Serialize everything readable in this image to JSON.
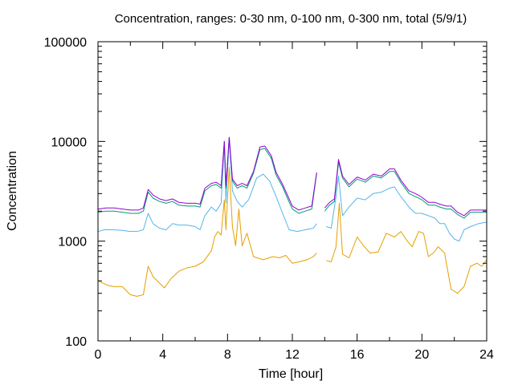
{
  "chart_data": {
    "type": "line",
    "title": "Concentration, ranges: 0-30 nm, 0-100 nm, 0-300 nm, total (5/9/1)",
    "xlabel": "Time [hour]",
    "ylabel": "Concentration",
    "xlim": [
      0,
      24
    ],
    "ylim": [
      100,
      100000
    ],
    "yscale": "log",
    "grid": false,
    "x_ticks": [
      {
        "value": 0,
        "label": "0"
      },
      {
        "value": 4,
        "label": "4"
      },
      {
        "value": 8,
        "label": "8"
      },
      {
        "value": 12,
        "label": "12"
      },
      {
        "value": 16,
        "label": "16"
      },
      {
        "value": 20,
        "label": "20"
      },
      {
        "value": 24,
        "label": "24"
      }
    ],
    "y_ticks": [
      {
        "value": 100,
        "label": "100"
      },
      {
        "value": 1000,
        "label": "1000"
      },
      {
        "value": 10000,
        "label": "10000"
      },
      {
        "value": 100000,
        "label": "100000"
      }
    ],
    "series": [
      {
        "color": "#e69f00",
        "points": [
          [
            0,
            400
          ],
          [
            0.3,
            380
          ],
          [
            0.6,
            360
          ],
          [
            1,
            350
          ],
          [
            1.5,
            350
          ],
          [
            2,
            290
          ],
          [
            2.4,
            280
          ],
          [
            2.8,
            290
          ],
          [
            3.1,
            560
          ],
          [
            3.4,
            440
          ],
          [
            3.8,
            380
          ],
          [
            4.1,
            340
          ],
          [
            4.5,
            420
          ],
          [
            5,
            500
          ],
          [
            5.5,
            540
          ],
          [
            6,
            560
          ],
          [
            6.5,
            620
          ],
          [
            7,
            800
          ],
          [
            7.2,
            1100
          ],
          [
            7.4,
            1250
          ],
          [
            7.6,
            1150
          ],
          [
            7.8,
            2600
          ],
          [
            7.9,
            1300
          ],
          [
            8.1,
            5500
          ],
          [
            8.3,
            1400
          ],
          [
            8.5,
            900
          ],
          [
            8.7,
            2100
          ],
          [
            8.9,
            900
          ],
          [
            9.2,
            1200
          ],
          [
            9.6,
            700
          ],
          [
            10.2,
            650
          ],
          [
            10.8,
            700
          ],
          [
            11.2,
            680
          ],
          [
            11.6,
            720
          ],
          [
            12,
            600
          ],
          [
            12.4,
            620
          ],
          [
            12.9,
            650
          ],
          [
            13.3,
            700
          ],
          [
            13.5,
            760
          ],
          null,
          [
            14.1,
            640
          ],
          [
            14.4,
            620
          ],
          [
            14.7,
            880
          ],
          [
            14.9,
            2400
          ],
          [
            15.1,
            740
          ],
          [
            15.5,
            680
          ],
          [
            16,
            1100
          ],
          [
            16.4,
            900
          ],
          [
            16.8,
            760
          ],
          [
            17.3,
            780
          ],
          [
            17.8,
            1200
          ],
          [
            18.3,
            1100
          ],
          [
            18.7,
            1250
          ],
          [
            19.1,
            1000
          ],
          [
            19.4,
            880
          ],
          [
            19.6,
            1050
          ],
          [
            19.8,
            1250
          ],
          [
            20.1,
            1200
          ],
          [
            20.4,
            700
          ],
          [
            20.7,
            760
          ],
          [
            21,
            880
          ],
          [
            21.4,
            760
          ],
          [
            21.8,
            330
          ],
          [
            22.2,
            300
          ],
          [
            22.6,
            350
          ],
          [
            23,
            560
          ],
          [
            23.4,
            600
          ],
          [
            23.7,
            560
          ],
          [
            24,
            650
          ]
        ]
      },
      {
        "color": "#56b4e9",
        "points": [
          [
            0,
            1250
          ],
          [
            0.4,
            1300
          ],
          [
            1,
            1300
          ],
          [
            1.5,
            1280
          ],
          [
            2,
            1250
          ],
          [
            2.5,
            1260
          ],
          [
            2.8,
            1300
          ],
          [
            3.1,
            1900
          ],
          [
            3.4,
            1500
          ],
          [
            3.8,
            1350
          ],
          [
            4.2,
            1300
          ],
          [
            4.6,
            1500
          ],
          [
            5,
            1450
          ],
          [
            5.5,
            1450
          ],
          [
            6,
            1400
          ],
          [
            6.3,
            1300
          ],
          [
            6.6,
            1800
          ],
          [
            7,
            2200
          ],
          [
            7.3,
            2000
          ],
          [
            7.6,
            2400
          ],
          [
            7.8,
            9500
          ],
          [
            7.9,
            2400
          ],
          [
            8.1,
            10500
          ],
          [
            8.3,
            3200
          ],
          [
            8.6,
            2500
          ],
          [
            8.9,
            2200
          ],
          [
            9.3,
            2600
          ],
          [
            9.8,
            4300
          ],
          [
            10.2,
            4700
          ],
          [
            10.6,
            4000
          ],
          [
            11,
            2800
          ],
          [
            11.4,
            1900
          ],
          [
            11.8,
            1300
          ],
          [
            12.3,
            1250
          ],
          [
            12.8,
            1300
          ],
          [
            13.3,
            1350
          ],
          [
            13.5,
            1500
          ],
          null,
          [
            14.1,
            1400
          ],
          [
            14.4,
            1350
          ],
          [
            14.7,
            2800
          ],
          [
            14.85,
            4500
          ],
          [
            15.1,
            1800
          ],
          [
            15.5,
            2200
          ],
          [
            16,
            2700
          ],
          [
            16.5,
            2600
          ],
          [
            17,
            3000
          ],
          [
            17.5,
            3100
          ],
          [
            18,
            3400
          ],
          [
            18.3,
            3500
          ],
          [
            18.7,
            2800
          ],
          [
            19.2,
            2200
          ],
          [
            19.6,
            1900
          ],
          [
            20,
            1900
          ],
          [
            20.4,
            1800
          ],
          [
            20.8,
            1700
          ],
          [
            21.1,
            1500
          ],
          [
            21.4,
            1500
          ],
          [
            21.7,
            1200
          ],
          [
            22,
            1050
          ],
          [
            22.3,
            1000
          ],
          [
            22.6,
            1300
          ],
          [
            23,
            1400
          ],
          [
            23.5,
            1500
          ],
          [
            24,
            1550
          ]
        ]
      },
      {
        "color": "#009e73",
        "points": [
          [
            0,
            1950
          ],
          [
            0.5,
            2000
          ],
          [
            1,
            2000
          ],
          [
            1.5,
            1950
          ],
          [
            2,
            1900
          ],
          [
            2.5,
            1900
          ],
          [
            2.8,
            2000
          ],
          [
            3.1,
            3100
          ],
          [
            3.4,
            2700
          ],
          [
            3.8,
            2500
          ],
          [
            4.2,
            2400
          ],
          [
            4.6,
            2500
          ],
          [
            5,
            2300
          ],
          [
            5.5,
            2250
          ],
          [
            6,
            2250
          ],
          [
            6.3,
            2200
          ],
          [
            6.6,
            3200
          ],
          [
            7,
            3600
          ],
          [
            7.3,
            3700
          ],
          [
            7.6,
            3400
          ],
          [
            7.8,
            10000
          ],
          [
            7.9,
            3400
          ],
          [
            8.1,
            11000
          ],
          [
            8.3,
            4000
          ],
          [
            8.6,
            3400
          ],
          [
            8.9,
            3600
          ],
          [
            9.2,
            3400
          ],
          [
            9.6,
            4800
          ],
          [
            10,
            8300
          ],
          [
            10.3,
            8500
          ],
          [
            10.7,
            6800
          ],
          [
            11,
            4600
          ],
          [
            11.4,
            3500
          ],
          [
            11.7,
            2700
          ],
          [
            12,
            2100
          ],
          [
            12.4,
            1900
          ],
          [
            12.8,
            2000
          ],
          [
            13.2,
            2100
          ],
          [
            13.5,
            4800
          ],
          null,
          [
            14,
            2000
          ],
          [
            14.3,
            2300
          ],
          [
            14.6,
            2500
          ],
          [
            14.85,
            6200
          ],
          [
            15.1,
            4300
          ],
          [
            15.5,
            3500
          ],
          [
            16,
            4200
          ],
          [
            16.5,
            3900
          ],
          [
            17,
            4500
          ],
          [
            17.5,
            4300
          ],
          [
            18,
            5000
          ],
          [
            18.3,
            5000
          ],
          [
            18.7,
            3900
          ],
          [
            19.2,
            3000
          ],
          [
            19.6,
            2800
          ],
          [
            20,
            2600
          ],
          [
            20.4,
            2300
          ],
          [
            20.8,
            2300
          ],
          [
            21.1,
            2200
          ],
          [
            21.5,
            2100
          ],
          [
            21.8,
            2100
          ],
          [
            22.2,
            1850
          ],
          [
            22.6,
            1700
          ],
          [
            23,
            1950
          ],
          [
            23.5,
            1950
          ],
          [
            24,
            1950
          ]
        ]
      },
      {
        "color": "#9400d3",
        "points": [
          [
            0,
            2100
          ],
          [
            0.5,
            2150
          ],
          [
            1,
            2150
          ],
          [
            1.5,
            2100
          ],
          [
            2,
            2050
          ],
          [
            2.5,
            2050
          ],
          [
            2.8,
            2150
          ],
          [
            3.1,
            3300
          ],
          [
            3.4,
            2900
          ],
          [
            3.8,
            2650
          ],
          [
            4.2,
            2550
          ],
          [
            4.6,
            2650
          ],
          [
            5,
            2450
          ],
          [
            5.5,
            2400
          ],
          [
            6,
            2400
          ],
          [
            6.3,
            2350
          ],
          [
            6.6,
            3400
          ],
          [
            7,
            3800
          ],
          [
            7.3,
            3900
          ],
          [
            7.6,
            3600
          ],
          [
            7.8,
            10000
          ],
          [
            7.9,
            3600
          ],
          [
            8.1,
            11000
          ],
          [
            8.3,
            4200
          ],
          [
            8.6,
            3600
          ],
          [
            8.9,
            3800
          ],
          [
            9.2,
            3600
          ],
          [
            9.6,
            5000
          ],
          [
            10,
            8800
          ],
          [
            10.3,
            9000
          ],
          [
            10.7,
            7200
          ],
          [
            11,
            4900
          ],
          [
            11.4,
            3700
          ],
          [
            11.7,
            2900
          ],
          [
            12,
            2250
          ],
          [
            12.4,
            2050
          ],
          [
            12.8,
            2150
          ],
          [
            13.2,
            2250
          ],
          [
            13.5,
            4900
          ],
          null,
          [
            14,
            2150
          ],
          [
            14.3,
            2450
          ],
          [
            14.6,
            2650
          ],
          [
            14.85,
            6600
          ],
          [
            15.1,
            4500
          ],
          [
            15.5,
            3700
          ],
          [
            16,
            4400
          ],
          [
            16.5,
            4100
          ],
          [
            17,
            4700
          ],
          [
            17.5,
            4500
          ],
          [
            18,
            5300
          ],
          [
            18.3,
            5300
          ],
          [
            18.7,
            4100
          ],
          [
            19.2,
            3200
          ],
          [
            19.6,
            3000
          ],
          [
            20,
            2750
          ],
          [
            20.4,
            2450
          ],
          [
            20.8,
            2450
          ],
          [
            21.1,
            2350
          ],
          [
            21.5,
            2250
          ],
          [
            21.8,
            2250
          ],
          [
            22.2,
            1950
          ],
          [
            22.6,
            1800
          ],
          [
            23,
            2050
          ],
          [
            23.5,
            2050
          ],
          [
            24,
            2050
          ]
        ]
      }
    ]
  }
}
